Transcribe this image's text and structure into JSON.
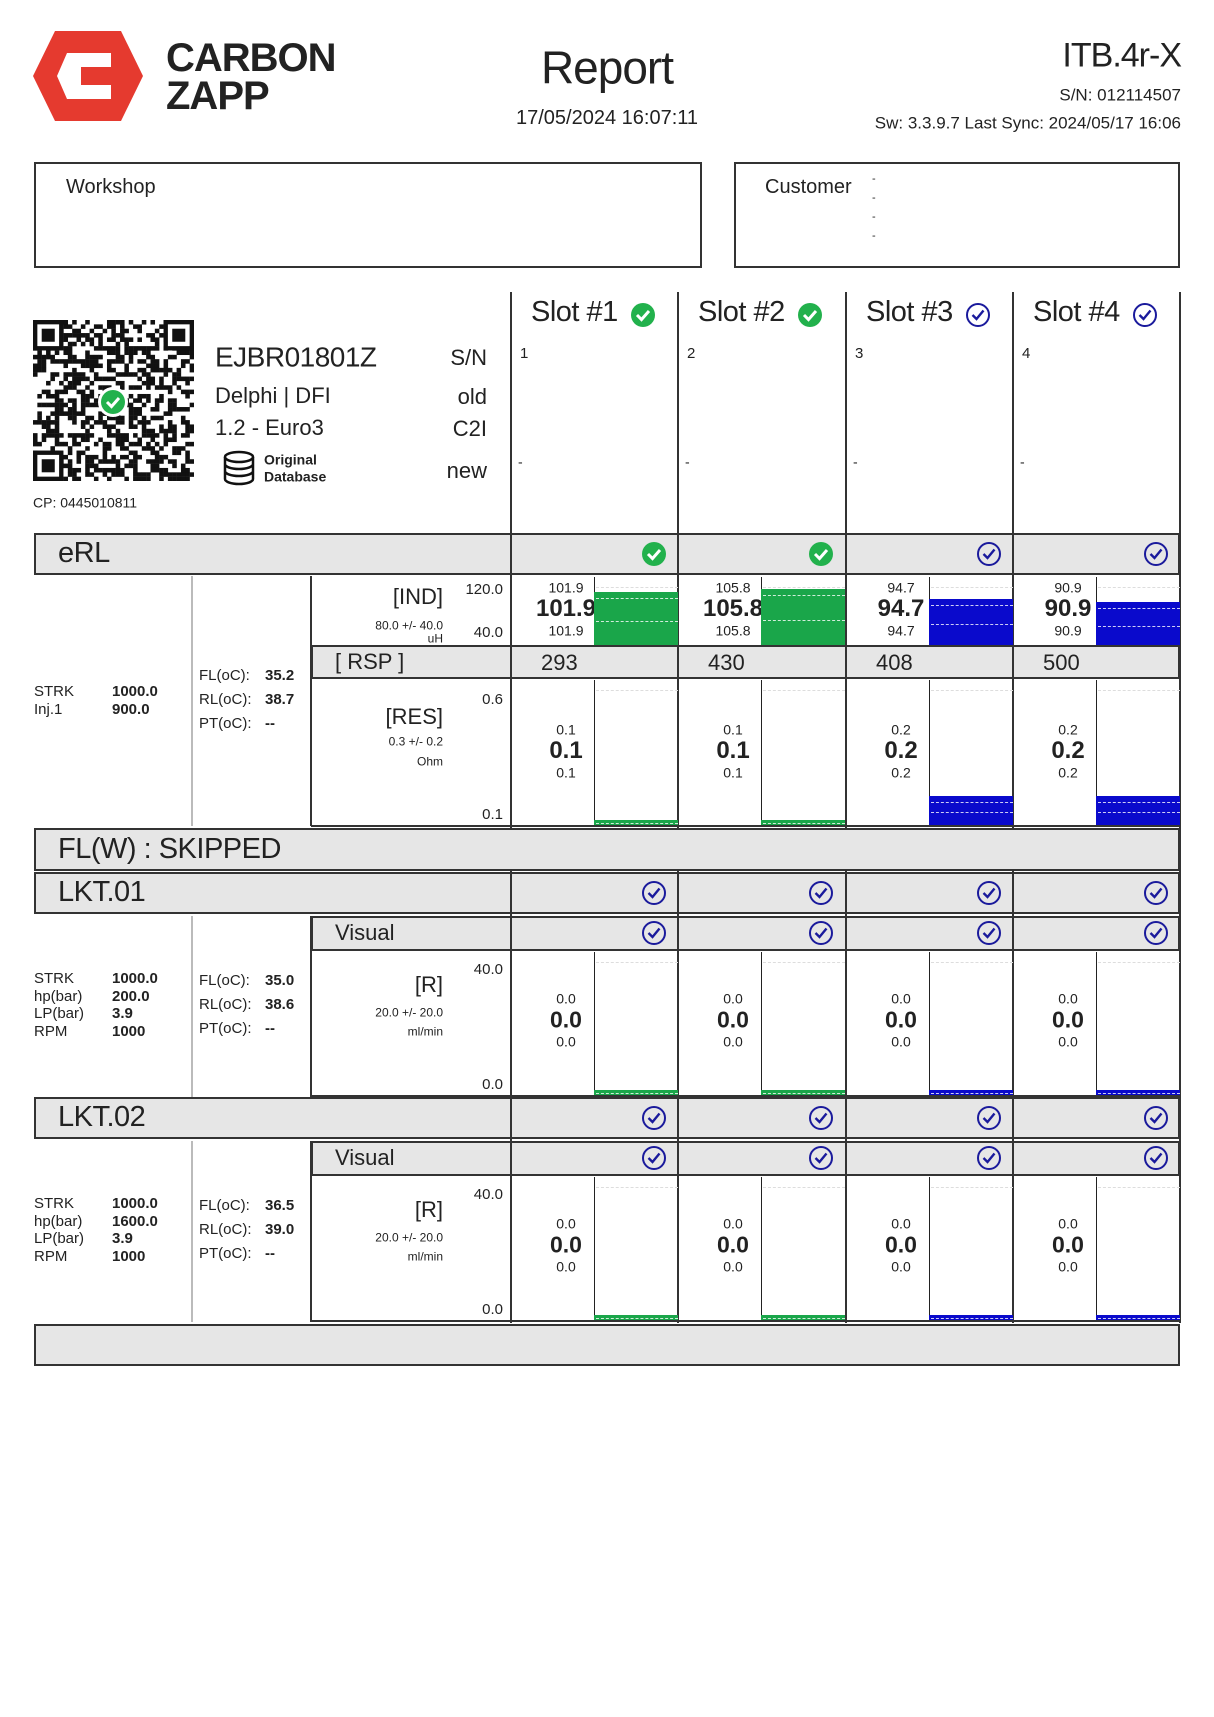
{
  "header": {
    "brand_line1": "CARBON",
    "brand_line2": "ZAPP",
    "title": "Report",
    "datetime": "17/05/2024 16:07:11",
    "device": "ITB.4r-X",
    "serial": "S/N: 012114507",
    "sync": "Sw: 3.3.9.7 Last Sync: 2024/05/17 16:06"
  },
  "workshop": {
    "label": "Workshop"
  },
  "customer": {
    "label": "Customer",
    "lines": [
      "-",
      "-",
      "-",
      "-"
    ]
  },
  "injector": {
    "part": "EJBR01801Z",
    "make": "Delphi | DFI",
    "engine": "1.2 - Euro3",
    "db_line1": "Original",
    "db_line2": "Database",
    "cp": "CP: 0445010811",
    "sn_label": "S/N",
    "field2": "old",
    "field3": "C2I",
    "field4": "new"
  },
  "slots": [
    {
      "name": "Slot #1",
      "status": "ok",
      "sn": "1",
      "note": "-",
      "color": "#1aa64a"
    },
    {
      "name": "Slot #2",
      "status": "ok",
      "sn": "2",
      "note": "-",
      "color": "#1aa64a"
    },
    {
      "name": "Slot #3",
      "status": "done",
      "sn": "3",
      "note": "-",
      "color": "#0a0acc"
    },
    {
      "name": "Slot #4",
      "status": "done",
      "sn": "4",
      "note": "-",
      "color": "#0a0acc"
    }
  ],
  "erl": {
    "title": "eRL",
    "status": [
      "ok",
      "ok",
      "done",
      "done"
    ],
    "params": [
      {
        "k": "STRK",
        "v": "1000.0"
      },
      {
        "k": "Inj.1",
        "v": "900.0"
      }
    ],
    "temps": [
      {
        "k": "FL(oC):",
        "v": "35.2"
      },
      {
        "k": "RL(oC):",
        "v": "38.7"
      },
      {
        "k": "PT(oC):",
        "v": "--"
      }
    ],
    "ind": {
      "label": "[IND]",
      "spec": "80.0 +/- 40.0",
      "unit": "uH",
      "max": "120.0",
      "min": "40.0",
      "slots": [
        [
          "101.9",
          "101.9",
          "101.9"
        ],
        [
          "105.8",
          "105.8",
          "105.8"
        ],
        [
          "94.7",
          "94.7",
          "94.7"
        ],
        [
          "90.9",
          "90.9",
          "90.9"
        ]
      ]
    },
    "rsp": {
      "label": "[ RSP ]",
      "values": [
        293,
        430,
        408,
        500
      ]
    },
    "res": {
      "label": "[RES]",
      "spec": "0.3 +/- 0.2",
      "unit": "Ohm",
      "max": "0.6",
      "min": "0.1",
      "slots": [
        [
          "0.1",
          "0.1",
          "0.1"
        ],
        [
          "0.1",
          "0.1",
          "0.1"
        ],
        [
          "0.2",
          "0.2",
          "0.2"
        ],
        [
          "0.2",
          "0.2",
          "0.2"
        ]
      ]
    }
  },
  "flw": {
    "title": "FL(W) : SKIPPED"
  },
  "lkt": [
    {
      "title": "LKT.01",
      "status": [
        "done",
        "done",
        "done",
        "done"
      ],
      "visual": {
        "label": "Visual",
        "status": [
          "done",
          "done",
          "done",
          "done"
        ]
      },
      "params": [
        {
          "k": "STRK",
          "v": "1000.0"
        },
        {
          "k": "hp(bar)",
          "v": "200.0"
        },
        {
          "k": "LP(bar)",
          "v": "3.9"
        },
        {
          "k": "RPM",
          "v": "1000"
        }
      ],
      "temps": [
        {
          "k": "FL(oC):",
          "v": "35.0"
        },
        {
          "k": "RL(oC):",
          "v": "38.6"
        },
        {
          "k": "PT(oC):",
          "v": "--"
        }
      ],
      "r": {
        "label": "[R]",
        "spec": "20.0 +/- 20.0",
        "unit": "ml/min",
        "max": "40.0",
        "min": "0.0",
        "slots": [
          [
            "0.0",
            "0.0",
            "0.0"
          ],
          [
            "0.0",
            "0.0",
            "0.0"
          ],
          [
            "0.0",
            "0.0",
            "0.0"
          ],
          [
            "0.0",
            "0.0",
            "0.0"
          ]
        ]
      }
    },
    {
      "title": "LKT.02",
      "status": [
        "done",
        "done",
        "done",
        "done"
      ],
      "visual": {
        "label": "Visual",
        "status": [
          "done",
          "done",
          "done",
          "done"
        ]
      },
      "params": [
        {
          "k": "STRK",
          "v": "1000.0"
        },
        {
          "k": "hp(bar)",
          "v": "1600.0"
        },
        {
          "k": "LP(bar)",
          "v": "3.9"
        },
        {
          "k": "RPM",
          "v": "1000"
        }
      ],
      "temps": [
        {
          "k": "FL(oC):",
          "v": "36.5"
        },
        {
          "k": "RL(oC):",
          "v": "39.0"
        },
        {
          "k": "PT(oC):",
          "v": "--"
        }
      ],
      "r": {
        "label": "[R]",
        "spec": "20.0 +/- 20.0",
        "unit": "ml/min",
        "max": "40.0",
        "min": "0.0",
        "slots": [
          [
            "0.0",
            "0.0",
            "0.0"
          ],
          [
            "0.0",
            "0.0",
            "0.0"
          ],
          [
            "0.0",
            "0.0",
            "0.0"
          ],
          [
            "0.0",
            "0.0",
            "0.0"
          ]
        ]
      }
    }
  ]
}
